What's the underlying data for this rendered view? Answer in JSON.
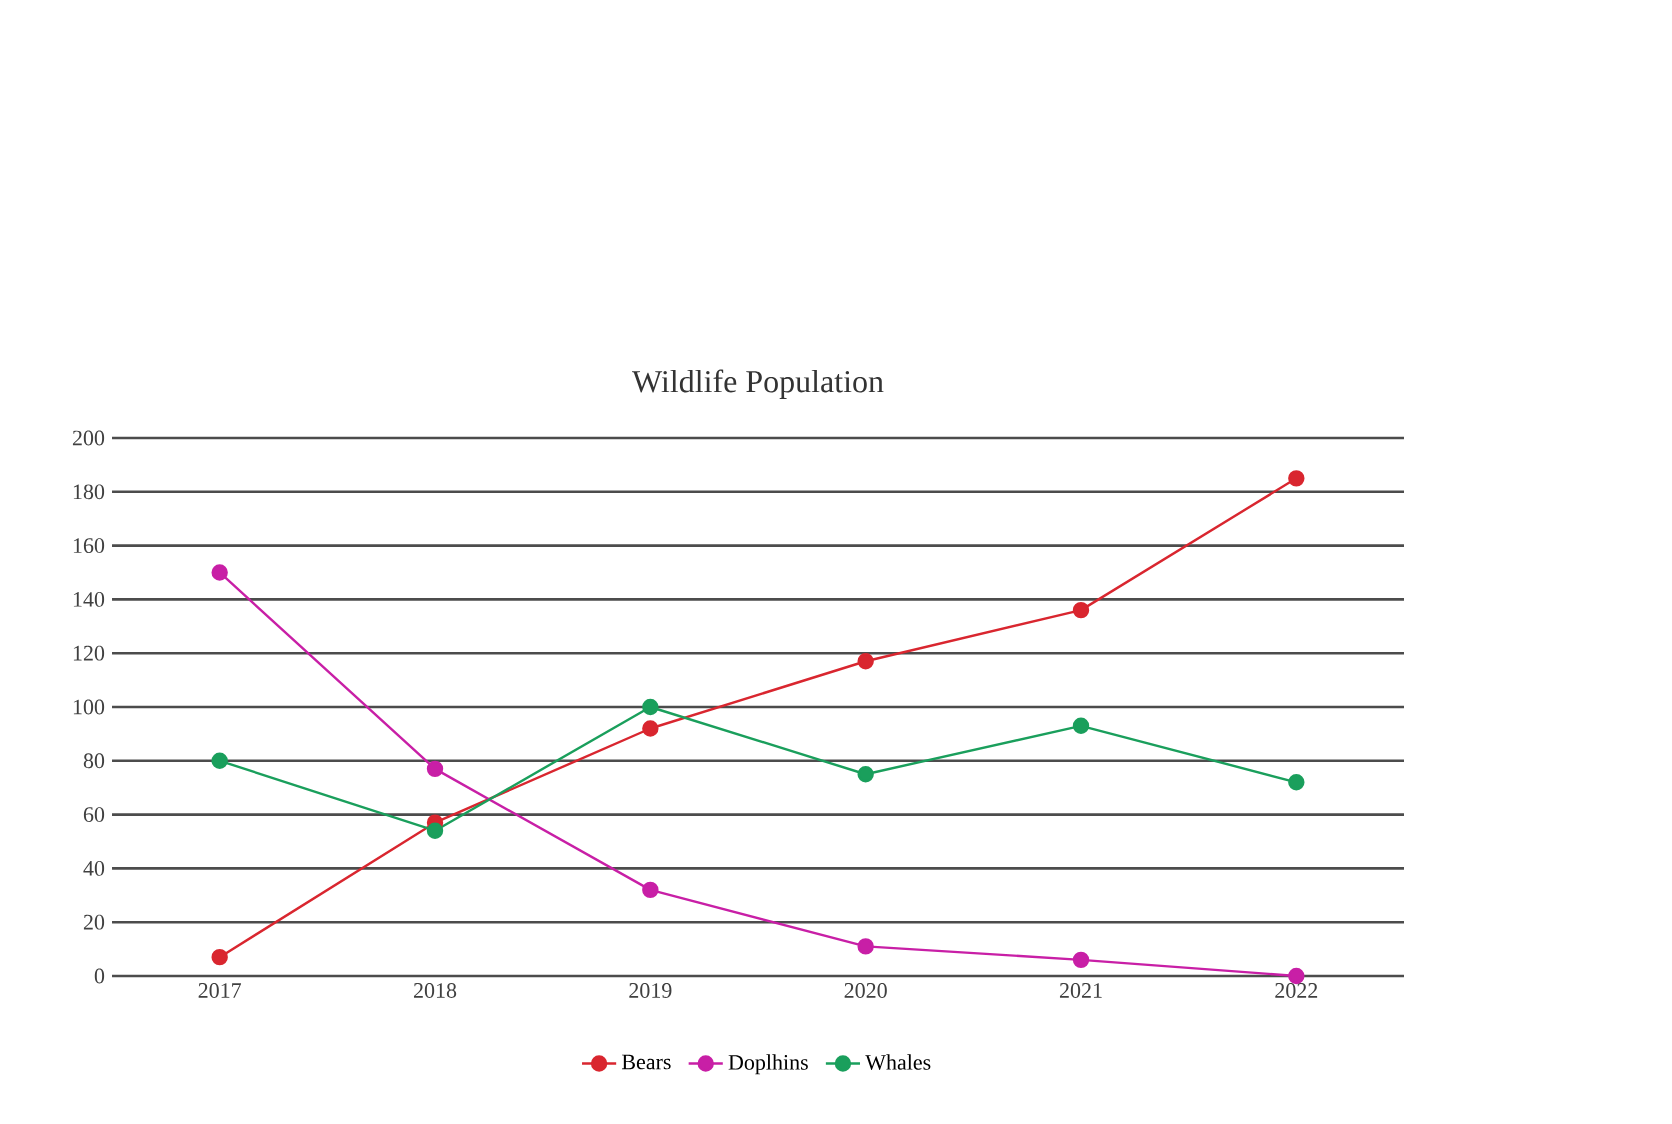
{
  "chart_data": {
    "type": "line",
    "title": "Wildlife Population",
    "categories": [
      "2017",
      "2018",
      "2019",
      "2020",
      "2021",
      "2022"
    ],
    "series": [
      {
        "name": "Bears",
        "color": "#d9262f",
        "values": [
          7,
          57,
          92,
          117,
          136,
          185
        ]
      },
      {
        "name": "Doplhins",
        "color": "#c81fa6",
        "values": [
          150,
          77,
          32,
          11,
          6,
          0
        ]
      },
      {
        "name": "Whales",
        "color": "#1a9f5c",
        "values": [
          80,
          54,
          100,
          75,
          93,
          72
        ]
      }
    ],
    "ylim": [
      0,
      200
    ],
    "yticks": [
      0,
      20,
      40,
      60,
      80,
      100,
      120,
      140,
      160,
      180,
      200
    ],
    "grid": "y",
    "legend": "bottom",
    "marker": "circle"
  }
}
